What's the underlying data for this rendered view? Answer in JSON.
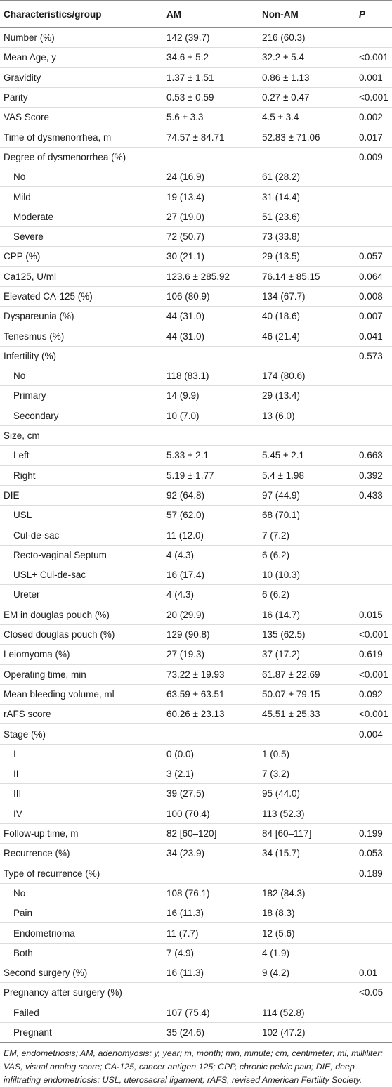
{
  "header": [
    "Characteristics/group",
    "AM",
    "Non-AM",
    "P"
  ],
  "rows": [
    {
      "label": "Number (%)",
      "am": "142 (39.7)",
      "nonam": "216 (60.3)",
      "p": ""
    },
    {
      "label": "Mean Age, y",
      "am": "34.6 ± 5.2",
      "nonam": "32.2 ± 5.4",
      "p": "<0.001"
    },
    {
      "label": "Gravidity",
      "am": "1.37 ± 1.51",
      "nonam": "0.86 ± 1.13",
      "p": "0.001"
    },
    {
      "label": "Parity",
      "am": "0.53 ± 0.59",
      "nonam": "0.27 ± 0.47",
      "p": "<0.001"
    },
    {
      "label": "VAS Score",
      "am": "5.6 ± 3.3",
      "nonam": "4.5 ± 3.4",
      "p": "0.002"
    },
    {
      "label": "Time of dysmenorrhea, m",
      "am": "74.57 ± 84.71",
      "nonam": "52.83 ± 71.06",
      "p": "0.017"
    },
    {
      "label": "Degree of dysmenorrhea (%)",
      "am": "",
      "nonam": "",
      "p": "0.009"
    },
    {
      "label": "No",
      "am": "24 (16.9)",
      "nonam": "61 (28.2)",
      "p": "",
      "sub": true
    },
    {
      "label": "Mild",
      "am": "19 (13.4)",
      "nonam": "31 (14.4)",
      "p": "",
      "sub": true
    },
    {
      "label": "Moderate",
      "am": "27 (19.0)",
      "nonam": "51 (23.6)",
      "p": "",
      "sub": true
    },
    {
      "label": "Severe",
      "am": "72 (50.7)",
      "nonam": "73 (33.8)",
      "p": "",
      "sub": true
    },
    {
      "label": "CPP (%)",
      "am": "30 (21.1)",
      "nonam": "29 (13.5)",
      "p": "0.057"
    },
    {
      "label": "Ca125, U/ml",
      "am": "123.6 ± 285.92",
      "nonam": "76.14 ± 85.15",
      "p": "0.064"
    },
    {
      "label": "Elevated CA-125 (%)",
      "am": "106 (80.9)",
      "nonam": "134 (67.7)",
      "p": "0.008"
    },
    {
      "label": "Dyspareunia (%)",
      "am": "44 (31.0)",
      "nonam": "40 (18.6)",
      "p": "0.007"
    },
    {
      "label": "Tenesmus (%)",
      "am": "44 (31.0)",
      "nonam": "46 (21.4)",
      "p": "0.041"
    },
    {
      "label": "Infertility (%)",
      "am": "",
      "nonam": "",
      "p": "0.573"
    },
    {
      "label": "No",
      "am": "118 (83.1)",
      "nonam": "174 (80.6)",
      "p": "",
      "sub": true
    },
    {
      "label": "Primary",
      "am": "14 (9.9)",
      "nonam": "29 (13.4)",
      "p": "",
      "sub": true
    },
    {
      "label": "Secondary",
      "am": "10 (7.0)",
      "nonam": "13 (6.0)",
      "p": "",
      "sub": true
    },
    {
      "label": "Size, cm",
      "am": "",
      "nonam": "",
      "p": ""
    },
    {
      "label": "Left",
      "am": "5.33 ± 2.1",
      "nonam": "5.45 ± 2.1",
      "p": "0.663",
      "sub": true
    },
    {
      "label": "Right",
      "am": "5.19 ± 1.77",
      "nonam": "5.4 ± 1.98",
      "p": "0.392",
      "sub": true
    },
    {
      "label": "DIE",
      "am": "92 (64.8)",
      "nonam": "97 (44.9)",
      "p": "0.433"
    },
    {
      "label": "USL",
      "am": "57 (62.0)",
      "nonam": "68 (70.1)",
      "p": "",
      "sub": true
    },
    {
      "label": "Cul-de-sac",
      "am": "11 (12.0)",
      "nonam": "7 (7.2)",
      "p": "",
      "sub": true
    },
    {
      "label": "Recto-vaginal    Septum",
      "am": "4 (4.3)",
      "nonam": "6 (6.2)",
      "p": "",
      "sub": true
    },
    {
      "label": "USL+ Cul-de-sac",
      "am": "16 (17.4)",
      "nonam": "10 (10.3)",
      "p": "",
      "sub": true
    },
    {
      "label": "Ureter",
      "am": "4 (4.3)",
      "nonam": "6 (6.2)",
      "p": "",
      "sub": true
    },
    {
      "label": "EM in douglas pouch (%)",
      "am": "20 (29.9)",
      "nonam": "16 (14.7)",
      "p": "0.015"
    },
    {
      "label": "Closed douglas pouch (%)",
      "am": "129 (90.8)",
      "nonam": "135 (62.5)",
      "p": "<0.001"
    },
    {
      "label": "Leiomyoma (%)",
      "am": "27 (19.3)",
      "nonam": "37 (17.2)",
      "p": "0.619"
    },
    {
      "label": "Operating time, min",
      "am": "73.22 ± 19.93",
      "nonam": "61.87 ± 22.69",
      "p": "<0.001"
    },
    {
      "label": "Mean bleeding volume, ml",
      "am": "63.59 ± 63.51",
      "nonam": "50.07 ± 79.15",
      "p": "0.092"
    },
    {
      "label": "rAFS score",
      "am": "60.26 ± 23.13",
      "nonam": "45.51 ± 25.33",
      "p": "<0.001"
    },
    {
      "label": "Stage (%)",
      "am": "",
      "nonam": "",
      "p": "0.004"
    },
    {
      "label": "I",
      "am": "0 (0.0)",
      "nonam": "1 (0.5)",
      "p": "",
      "sub": true
    },
    {
      "label": "II",
      "am": "3 (2.1)",
      "nonam": "7 (3.2)",
      "p": "",
      "sub": true
    },
    {
      "label": "III",
      "am": "39 (27.5)",
      "nonam": "95 (44.0)",
      "p": "",
      "sub": true
    },
    {
      "label": "IV",
      "am": "100 (70.4)",
      "nonam": "113 (52.3)",
      "p": "",
      "sub": true
    },
    {
      "label": "Follow-up time, m",
      "am": "82 [60–120]",
      "nonam": "84 [60–117]",
      "p": "0.199"
    },
    {
      "label": "Recurrence (%)",
      "am": "34 (23.9)",
      "nonam": "34 (15.7)",
      "p": "0.053"
    },
    {
      "label": "Type of recurrence (%)",
      "am": "",
      "nonam": "",
      "p": "0.189"
    },
    {
      "label": "No",
      "am": "108 (76.1)",
      "nonam": "182 (84.3)",
      "p": "",
      "sub": true
    },
    {
      "label": "Pain",
      "am": "16 (11.3)",
      "nonam": "18 (8.3)",
      "p": "",
      "sub": true
    },
    {
      "label": "Endometrioma",
      "am": "11 (7.7)",
      "nonam": "12 (5.6)",
      "p": "",
      "sub": true
    },
    {
      "label": "Both",
      "am": "7 (4.9)",
      "nonam": "4 (1.9)",
      "p": "",
      "sub": true
    },
    {
      "label": "Second surgery (%)",
      "am": "16 (11.3)",
      "nonam": "9 (4.2)",
      "p": "0.01"
    },
    {
      "label": "Pregnancy after surgery (%)",
      "am": "",
      "nonam": "",
      "p": "<0.05"
    },
    {
      "label": "Failed",
      "am": "107 (75.4)",
      "nonam": "114 (52.8)",
      "p": "",
      "sub": true
    },
    {
      "label": "Pregnant",
      "am": "35 (24.6)",
      "nonam": "102 (47.2)",
      "p": "",
      "sub": true
    }
  ],
  "footnote": "EM, endometriosis; AM, adenomyosis; y, year; m, month; min, minute; cm, centimeter; ml, milliliter; VAS, visual analog score; CA-125, cancer antigen 125; CPP, chronic pelvic pain; DIE, deep infiltrating endometriosis; USL, uterosacral ligament; rAFS, revised American Fertility Society."
}
